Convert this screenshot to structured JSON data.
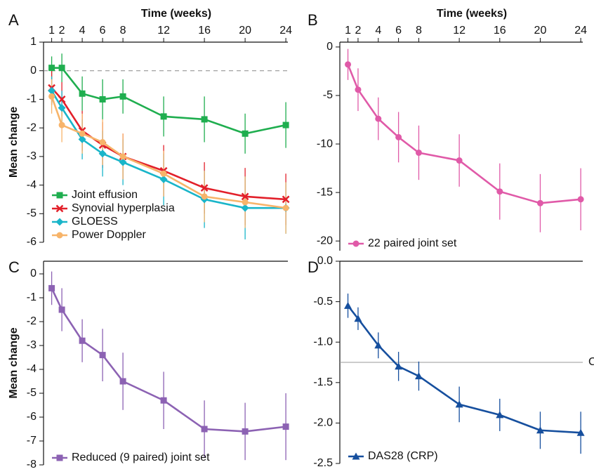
{
  "chart_data": [
    {
      "type": "line",
      "label": "A",
      "xlabel": "Time (weeks)",
      "ylabel": "Mean change",
      "x": [
        1,
        2,
        4,
        6,
        8,
        12,
        16,
        20,
        24
      ],
      "xlim": [
        0.2,
        24.2
      ],
      "xticks": [
        1,
        2,
        4,
        6,
        8,
        12,
        16,
        20,
        24
      ],
      "ylim": [
        1,
        -6
      ],
      "yticks": [
        1,
        0,
        -1,
        -2,
        -3,
        -4,
        -5,
        -6
      ],
      "reference_line": {
        "value": 0
      },
      "legend": "lower left",
      "series": [
        {
          "name": "Joint effusion",
          "color": "#1fae4f",
          "marker": "square",
          "values": [
            0.1,
            0.1,
            -0.8,
            -1.0,
            -0.9,
            -1.6,
            -1.7,
            -2.2,
            -1.9
          ],
          "errors": [
            0.4,
            0.5,
            0.6,
            0.7,
            0.6,
            0.7,
            0.8,
            0.7,
            0.8
          ]
        },
        {
          "name": "Synovial hyperplasia",
          "color": "#e2202a",
          "marker": "x",
          "values": [
            -0.6,
            -1.0,
            -2.1,
            -2.6,
            -3.0,
            -3.5,
            -4.1,
            -4.4,
            -4.5
          ],
          "errors": [
            0.6,
            0.6,
            0.7,
            0.8,
            0.8,
            0.9,
            0.9,
            1.0,
            0.9
          ]
        },
        {
          "name": "GLOESS",
          "color": "#19b5c9",
          "marker": "diamond",
          "values": [
            -0.7,
            -1.3,
            -2.4,
            -2.9,
            -3.2,
            -3.8,
            -4.5,
            -4.8,
            -4.8
          ],
          "errors": [
            0.5,
            0.6,
            0.7,
            0.8,
            0.8,
            0.9,
            1.0,
            1.1,
            0.9
          ]
        },
        {
          "name": "Power Doppler",
          "color": "#f7b46a",
          "marker": "circle",
          "values": [
            -0.9,
            -1.9,
            -2.2,
            -2.5,
            -3.0,
            -3.6,
            -4.4,
            -4.6,
            -4.8
          ],
          "errors": [
            0.6,
            0.6,
            0.7,
            0.8,
            0.8,
            0.8,
            0.9,
            0.9,
            0.9
          ]
        }
      ]
    },
    {
      "type": "line",
      "label": "B",
      "xlabel": "Time (weeks)",
      "x": [
        1,
        2,
        4,
        6,
        8,
        12,
        16,
        20,
        24
      ],
      "xlim": [
        0.2,
        24.2
      ],
      "xticks": [
        1,
        2,
        4,
        6,
        8,
        12,
        16,
        20,
        24
      ],
      "ylim": [
        0.5,
        -21
      ],
      "yticks": [
        0,
        -5,
        -10,
        -15,
        -20
      ],
      "legend": "lower left",
      "series": [
        {
          "name": "22 paired joint set",
          "color": "#e05aa8",
          "marker": "circle",
          "values": [
            -1.8,
            -4.4,
            -7.4,
            -9.3,
            -10.9,
            -11.7,
            -14.9,
            -16.1,
            -15.7
          ],
          "errors": [
            1.6,
            2.2,
            2.2,
            2.6,
            2.8,
            2.7,
            2.9,
            3.0,
            3.2
          ]
        }
      ]
    },
    {
      "type": "line",
      "label": "C",
      "ylabel": "Mean change",
      "x": [
        1,
        2,
        4,
        6,
        8,
        12,
        16,
        20,
        24
      ],
      "xlim": [
        0.2,
        24.2
      ],
      "ylim": [
        0.53,
        -8
      ],
      "yticks": [
        0,
        -1,
        -2,
        -3,
        -4,
        -5,
        -6,
        -7,
        -8
      ],
      "legend": "lower left",
      "series": [
        {
          "name": "Reduced (9 paired) joint set",
          "color": "#8c62b3",
          "marker": "square",
          "values": [
            -0.6,
            -1.5,
            -2.8,
            -3.4,
            -4.5,
            -5.3,
            -6.5,
            -6.6,
            -6.4
          ],
          "errors": [
            0.7,
            0.9,
            0.9,
            1.1,
            1.2,
            1.2,
            1.2,
            1.2,
            1.4
          ]
        }
      ]
    },
    {
      "type": "line",
      "label": "D",
      "x": [
        1,
        2,
        4,
        6,
        8,
        12,
        16,
        20,
        24
      ],
      "xlim": [
        0.2,
        24.2
      ],
      "ylim": [
        0,
        -2.5
      ],
      "yticks": [
        {
          "value": 0,
          "label": "0.0"
        },
        -0.5,
        {
          "value": -1,
          "label": "-1.0"
        },
        -1.5,
        {
          "value": -2,
          "label": "-2.0"
        },
        -2.5
      ],
      "reference_line": {
        "value": -1.25,
        "label": "CMI"
      },
      "legend": "lower left",
      "series": [
        {
          "name": "DAS28 (CRP)",
          "color": "#164f9e",
          "marker": "triangle",
          "values": [
            -0.55,
            -0.71,
            -1.04,
            -1.3,
            -1.42,
            -1.77,
            -1.9,
            -2.09,
            -2.12
          ],
          "errors": [
            0.15,
            0.14,
            0.16,
            0.18,
            0.18,
            0.22,
            0.2,
            0.23,
            0.26
          ]
        }
      ]
    }
  ]
}
